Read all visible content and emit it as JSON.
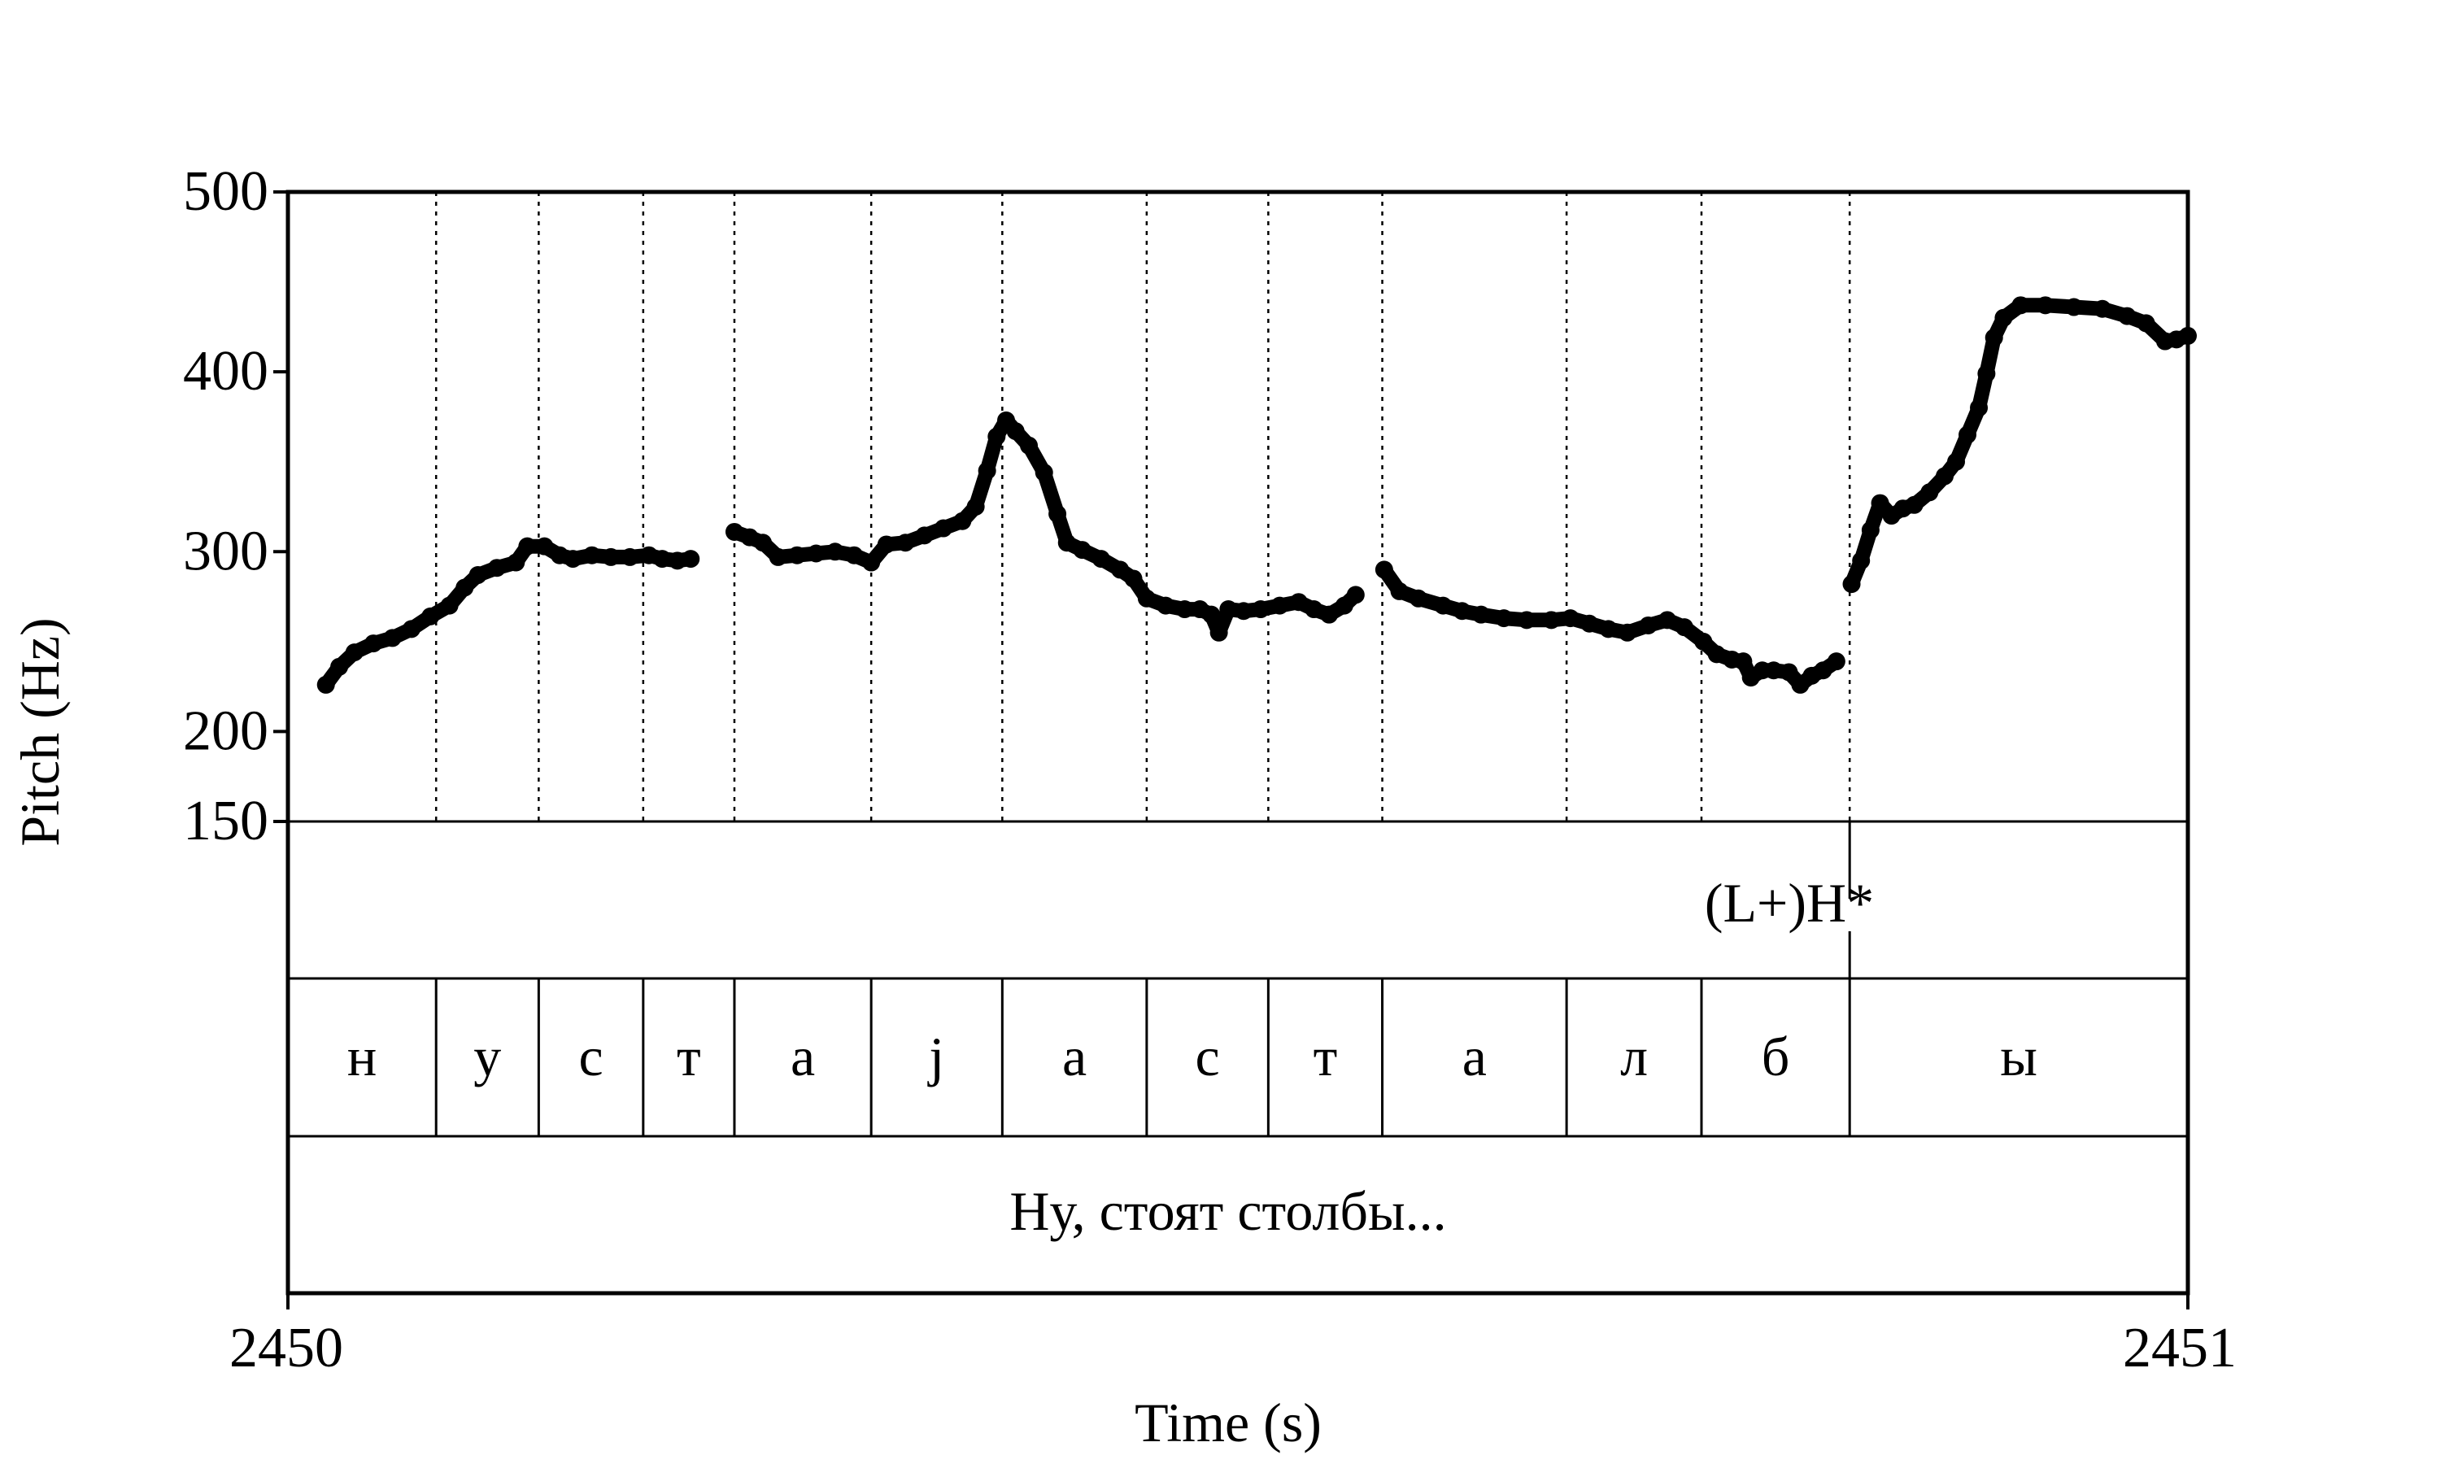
{
  "chart_data": {
    "type": "line",
    "ylabel": "Pitch (Hz)",
    "xlabel": "Time (s)",
    "x_tick_labels": [
      "2450",
      "2451"
    ],
    "xlim": [
      2450,
      2451
    ],
    "y_ticks": [
      150,
      200,
      300,
      400,
      500
    ],
    "y_tick_labels": [
      "150",
      "200",
      "300",
      "400",
      "500"
    ],
    "ylim": [
      150,
      500
    ],
    "grid": "vertical dotted lines at segment boundaries",
    "tone_label": "(L+)H*",
    "tone_time": 2450.822,
    "segment_boundaries": [
      2450,
      2450.078,
      2450.132,
      2450.187,
      2450.235,
      2450.307,
      2450.376,
      2450.452,
      2450.516,
      2450.576,
      2450.673,
      2450.744,
      2450.822,
      2451
    ],
    "segments": [
      "н",
      "у",
      "с",
      "т",
      "а",
      "j",
      "а",
      "с",
      "т",
      "а",
      "л",
      "б",
      "ы"
    ],
    "sentence": "Ну, стоят столбы...",
    "series": [
      {
        "color": "#000000",
        "segments": [
          [
            [
              2450.02,
              226
            ],
            [
              2450.027,
              236
            ],
            [
              2450.035,
              244
            ],
            [
              2450.045,
              249
            ],
            [
              2450.055,
              252
            ],
            [
              2450.065,
              257
            ],
            [
              2450.075,
              264
            ],
            [
              2450.085,
              270
            ],
            [
              2450.093,
              280
            ],
            [
              2450.1,
              287
            ],
            [
              2450.11,
              291
            ],
            [
              2450.12,
              294
            ],
            [
              2450.126,
              303
            ],
            [
              2450.135,
              303
            ],
            [
              2450.143,
              298
            ],
            [
              2450.15,
              296
            ],
            [
              2450.16,
              298
            ],
            [
              2450.17,
              297
            ],
            [
              2450.18,
              297
            ],
            [
              2450.19,
              298
            ],
            [
              2450.197,
              296
            ],
            [
              2450.205,
              295
            ],
            [
              2450.212,
              296
            ]
          ],
          [
            [
              2450.235,
              311
            ],
            [
              2450.243,
              308
            ],
            [
              2450.25,
              305
            ],
            [
              2450.258,
              297
            ],
            [
              2450.268,
              298
            ],
            [
              2450.278,
              299
            ],
            [
              2450.288,
              300
            ],
            [
              2450.298,
              298
            ],
            [
              2450.307,
              294
            ],
            [
              2450.315,
              304
            ],
            [
              2450.325,
              305
            ],
            [
              2450.335,
              309
            ],
            [
              2450.345,
              313
            ],
            [
              2450.355,
              317
            ],
            [
              2450.362,
              325
            ],
            [
              2450.368,
              345
            ],
            [
              2450.373,
              364
            ],
            [
              2450.378,
              373
            ],
            [
              2450.383,
              367
            ],
            [
              2450.39,
              359
            ],
            [
              2450.398,
              344
            ],
            [
              2450.405,
              321
            ],
            [
              2450.41,
              305
            ],
            [
              2450.418,
              301
            ],
            [
              2450.428,
              296
            ],
            [
              2450.438,
              290
            ],
            [
              2450.445,
              285
            ],
            [
              2450.452,
              274
            ],
            [
              2450.462,
              270
            ],
            [
              2450.472,
              268
            ],
            [
              2450.48,
              268
            ],
            [
              2450.486,
              265
            ],
            [
              2450.49,
              255
            ],
            [
              2450.495,
              268
            ],
            [
              2450.503,
              267
            ],
            [
              2450.512,
              268
            ],
            [
              2450.522,
              270
            ],
            [
              2450.532,
              272
            ],
            [
              2450.54,
              268
            ],
            [
              2450.548,
              265
            ],
            [
              2450.556,
              270
            ],
            [
              2450.562,
              276
            ]
          ],
          [
            [
              2450.577,
              290
            ],
            [
              2450.585,
              278
            ],
            [
              2450.595,
              274
            ],
            [
              2450.608,
              270
            ],
            [
              2450.618,
              267
            ],
            [
              2450.628,
              265
            ],
            [
              2450.64,
              263
            ],
            [
              2450.652,
              262
            ],
            [
              2450.665,
              262
            ],
            [
              2450.675,
              263
            ],
            [
              2450.685,
              260
            ],
            [
              2450.695,
              257
            ],
            [
              2450.705,
              255
            ],
            [
              2450.716,
              259
            ],
            [
              2450.726,
              262
            ],
            [
              2450.735,
              258
            ],
            [
              2450.745,
              250
            ],
            [
              2450.752,
              243
            ],
            [
              2450.76,
              240
            ],
            [
              2450.766,
              239
            ],
            [
              2450.77,
              230
            ],
            [
              2450.776,
              234
            ],
            [
              2450.782,
              234
            ],
            [
              2450.79,
              233
            ],
            [
              2450.796,
              226
            ],
            [
              2450.802,
              231
            ],
            [
              2450.808,
              234
            ],
            [
              2450.815,
              239
            ]
          ],
          [
            [
              2450.823,
              282
            ],
            [
              2450.828,
              295
            ],
            [
              2450.833,
              312
            ],
            [
              2450.838,
              327
            ],
            [
              2450.844,
              320
            ],
            [
              2450.85,
              324
            ],
            [
              2450.856,
              326
            ],
            [
              2450.864,
              333
            ],
            [
              2450.872,
              342
            ],
            [
              2450.878,
              350
            ],
            [
              2450.884,
              365
            ],
            [
              2450.89,
              380
            ],
            [
              2450.894,
              399
            ],
            [
              2450.898,
              419
            ],
            [
              2450.903,
              430
            ],
            [
              2450.912,
              437
            ],
            [
              2450.925,
              437
            ],
            [
              2450.94,
              436
            ],
            [
              2450.955,
              435
            ],
            [
              2450.968,
              431
            ],
            [
              2450.978,
              427
            ],
            [
              2450.988,
              417
            ],
            [
              2450.994,
              418
            ],
            [
              2451.0,
              420
            ]
          ]
        ]
      }
    ]
  }
}
